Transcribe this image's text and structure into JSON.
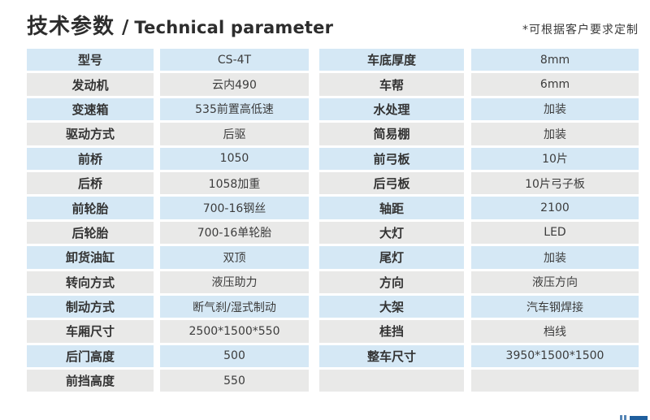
{
  "header": {
    "title_cn": "技术参数",
    "title_separator": "/",
    "title_en": "Technical parameter",
    "note": "*可根据客户要求定制"
  },
  "colors": {
    "row_blue": "#d5e8f5",
    "row_gray": "#e9e9e8",
    "label_text": "#333333",
    "value_text": "#3c3c3c",
    "logo_blue_light": "#5585b5",
    "logo_blue_dark": "#1f5f9e"
  },
  "left_table": {
    "rows": [
      {
        "label": "型号",
        "value": "CS-4T"
      },
      {
        "label": "发动机",
        "value": "云内490"
      },
      {
        "label": "变速箱",
        "value": "535前置高低速"
      },
      {
        "label": "驱动方式",
        "value": "后驱"
      },
      {
        "label": "前桥",
        "value": "1050"
      },
      {
        "label": "后桥",
        "value": "1058加重"
      },
      {
        "label": "前轮胎",
        "value": "700-16钢丝"
      },
      {
        "label": "后轮胎",
        "value": "700-16单轮胎"
      },
      {
        "label": "卸货油缸",
        "value": "双顶"
      },
      {
        "label": "转向方式",
        "value": "液压助力"
      },
      {
        "label": "制动方式",
        "value": "断气刹/湿式制动"
      },
      {
        "label": "车厢尺寸",
        "value": "2500*1500*550"
      },
      {
        "label": "后门高度",
        "value": "500"
      },
      {
        "label": "前挡高度",
        "value": "550"
      }
    ]
  },
  "right_table": {
    "rows": [
      {
        "label": "车底厚度",
        "value": "8mm"
      },
      {
        "label": "车帮",
        "value": "6mm"
      },
      {
        "label": "水处理",
        "value": "加装"
      },
      {
        "label": "简易棚",
        "value": "加装"
      },
      {
        "label": "前弓板",
        "value": "10片"
      },
      {
        "label": "后弓板",
        "value": "10片弓子板"
      },
      {
        "label": "轴距",
        "value": "2100"
      },
      {
        "label": "大灯",
        "value": "LED"
      },
      {
        "label": "尾灯",
        "value": "加装"
      },
      {
        "label": "方向",
        "value": "液压方向"
      },
      {
        "label": "大架",
        "value": "汽车钢焊接"
      },
      {
        "label": "桂挡",
        "value": "档线"
      },
      {
        "label": "整车尺寸",
        "value": "3950*1500*1500"
      },
      {
        "label": "",
        "value": ""
      }
    ]
  }
}
